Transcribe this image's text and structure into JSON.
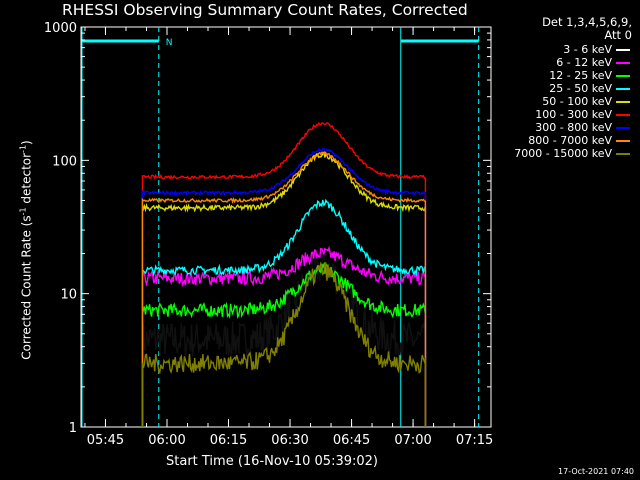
{
  "chart_data": {
    "type": "line",
    "title": "RHESSI Observing Summary Count Rates, Corrected",
    "xlabel": "Start Time (16-Nov-10 05:39:02)",
    "ylabel_main": "Corrected Count Rate (s",
    "ylabel_sup1": "-1",
    "ylabel_mid": " detector",
    "ylabel_sup2": "-1",
    "ylabel_end": ")",
    "yscale": "log",
    "ylim": [
      1,
      1000
    ],
    "xlim": [
      "05:39:02",
      "07:19:00"
    ],
    "x_ticks": [
      "05:45",
      "06:00",
      "06:15",
      "06:30",
      "06:45",
      "07:00",
      "07:15"
    ],
    "y_ticks": [
      "1",
      "10",
      "100",
      "1000"
    ],
    "detectors": "Det 1,3,4,5,6,9,",
    "attenuator": "Att 0",
    "night_label": "N",
    "series": [
      {
        "name": "3 - 6 keV",
        "color": "#000000",
        "base": 4.5,
        "peak": 16,
        "noise": 0.14
      },
      {
        "name": "6 - 12 keV",
        "color": "#ff00ff",
        "base": 13,
        "peak": 20,
        "noise": 0.05
      },
      {
        "name": "12 - 25 keV",
        "color": "#00ff00",
        "base": 7.5,
        "peak": 15,
        "noise": 0.05
      },
      {
        "name": "25 - 50 keV",
        "color": "#00ffff",
        "base": 15,
        "peak": 48,
        "noise": 0.03
      },
      {
        "name": "50 - 100 keV",
        "color": "#dddd00",
        "base": 44,
        "peak": 110,
        "noise": 0.02
      },
      {
        "name": "100 - 300 keV",
        "color": "#ff0000",
        "base": 75,
        "peak": 190,
        "noise": 0.012
      },
      {
        "name": "300 - 800 keV",
        "color": "#0000ff",
        "base": 57,
        "peak": 120,
        "noise": 0.012
      },
      {
        "name": "800 - 7000 keV",
        "color": "#ff8800",
        "base": 50,
        "peak": 112,
        "noise": 0.012
      },
      {
        "name": "7000 - 15000 keV",
        "color": "#808000",
        "base": 3.0,
        "peak": 15,
        "noise": 0.07
      }
    ],
    "peak_time": "06:38",
    "data_start": "05:54",
    "data_end": "07:03",
    "saa_intervals": [
      [
        "05:39",
        "05:58"
      ],
      [
        "06:57",
        "07:16"
      ]
    ],
    "night_intervals": [
      [
        "05:39",
        "05:58"
      ],
      [
        "06:57",
        "07:16"
      ]
    ]
  },
  "footer": {
    "timestamp": "17-Oct-2021 07:40"
  }
}
